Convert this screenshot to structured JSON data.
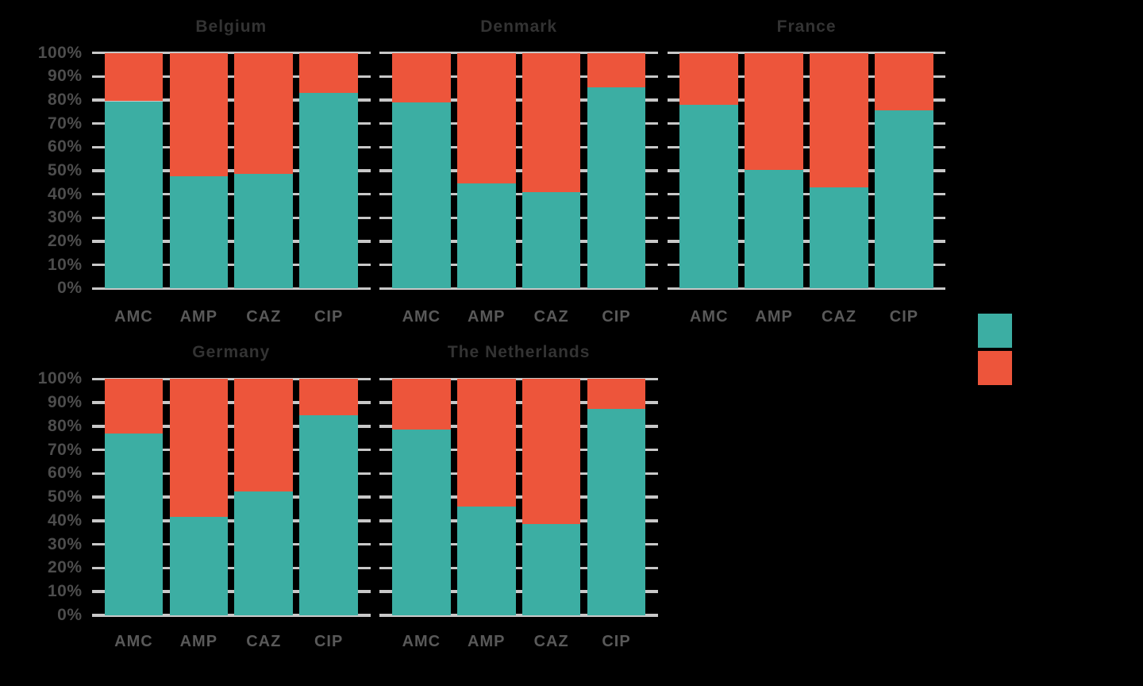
{
  "chart_data": {
    "type": "bar",
    "stacked": true,
    "unit": "percent",
    "categories": [
      "AMC",
      "AMP",
      "CAZ",
      "CIP"
    ],
    "ylim": [
      0,
      100
    ],
    "ytick_labels": [
      "0%",
      "10%",
      "20%",
      "30%",
      "40%",
      "50%",
      "60%",
      "70%",
      "80%",
      "90%",
      "100%"
    ],
    "grid": true,
    "panels": [
      {
        "title": "Belgium",
        "bottom_pct": [
          79.5,
          47.5,
          48.5,
          83.0
        ],
        "top_pct": [
          20.5,
          52.5,
          51.5,
          17.0
        ]
      },
      {
        "title": "Denmark",
        "bottom_pct": [
          79.0,
          44.5,
          41.0,
          85.5
        ],
        "top_pct": [
          21.0,
          55.5,
          59.0,
          14.5
        ]
      },
      {
        "title": "France",
        "bottom_pct": [
          78.0,
          50.5,
          43.0,
          75.5
        ],
        "top_pct": [
          22.0,
          49.5,
          57.0,
          24.5
        ]
      },
      {
        "title": "Germany",
        "bottom_pct": [
          77.0,
          41.5,
          52.5,
          84.5
        ],
        "top_pct": [
          23.0,
          58.5,
          47.5,
          15.5
        ]
      },
      {
        "title": "The Netherlands",
        "bottom_pct": [
          78.5,
          46.0,
          38.5,
          87.5
        ],
        "top_pct": [
          21.5,
          54.0,
          61.5,
          12.5
        ]
      }
    ],
    "colors": {
      "bottom_series": "#3CAEA3",
      "top_series": "#ED553B",
      "gridline": "#C8C8C8",
      "title_text": "#333333",
      "ytick_text": "#4D4D4D",
      "xtick_text": "#595959",
      "background": "#000000"
    },
    "legend": {
      "position": "right",
      "labels_visible": false,
      "swatches": [
        {
          "name": "legend-swatch-teal",
          "color": "#3CAEA3"
        },
        {
          "name": "legend-swatch-red",
          "color": "#ED553B"
        }
      ]
    }
  }
}
